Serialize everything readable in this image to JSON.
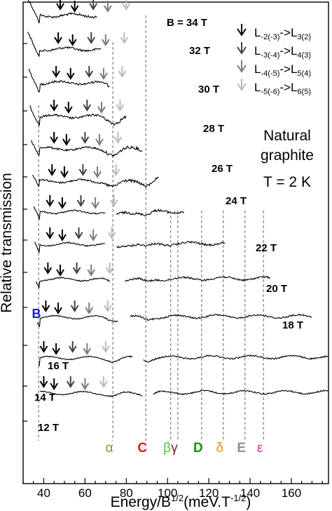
{
  "chart_data": {
    "type": "line",
    "xlabel": "Energy/B",
    "xlabel_sup": "1/2",
    "xlabel_units": "(meV.T",
    "xlabel_units_sup": "-1/2",
    "xlabel_close": ")",
    "ylabel": "Relative transmission",
    "xlim": [
      30,
      178
    ],
    "xticks": [
      40,
      60,
      80,
      100,
      120,
      140,
      160
    ],
    "field_order": [
      34,
      32,
      30,
      28,
      26,
      24,
      22,
      20,
      18,
      16,
      14,
      12
    ],
    "traces": [
      {
        "label": "B = 34 T",
        "field": 34
      },
      {
        "label": "32 T",
        "field": 32
      },
      {
        "label": "30 T",
        "field": 30
      },
      {
        "label": "28 T",
        "field": 28
      },
      {
        "label": "26 T",
        "field": 26
      },
      {
        "label": "24 T",
        "field": 24
      },
      {
        "label": "22 T",
        "field": 22
      },
      {
        "label": "20 T",
        "field": 20
      },
      {
        "label": "18 T",
        "field": 18
      },
      {
        "label": "16 T",
        "field": 16
      },
      {
        "label": "14 T",
        "field": 14
      },
      {
        "label": "12 T",
        "field": 12
      }
    ],
    "dashed_lines": [
      {
        "label": "B",
        "x": 37.5,
        "color": "#1a1adc"
      },
      {
        "label": "α",
        "x": 73.5,
        "color": "#9a8a1a"
      },
      {
        "label": "C",
        "x": 89.5,
        "color": "#e31a1c"
      },
      {
        "label": "β",
        "x": 101.5,
        "color": "#3ecc3e"
      },
      {
        "label": "γ",
        "x": 105,
        "color": "#8b1a1a"
      },
      {
        "label": "D",
        "x": 116.5,
        "color": "#1a8a1a"
      },
      {
        "label": "δ",
        "x": 127,
        "color": "#f08c1a"
      },
      {
        "label": "E",
        "x": 137.5,
        "color": "#909090"
      },
      {
        "label": "ε",
        "x": 146.5,
        "color": "#e0289a"
      }
    ],
    "transitions": [
      {
        "label": "L-2(-3) -> L3(2)",
        "main": "L",
        "sub1": "-2(-3)",
        "arrow": "->",
        "main2": "L",
        "sub2": "3(2)",
        "color": "#000000"
      },
      {
        "label": "L-3(-4) -> L4(3)",
        "main": "L",
        "sub1": "-3(-4)",
        "arrow": "->",
        "main2": "L",
        "sub2": "4(3)",
        "color": "#404040"
      },
      {
        "label": "L-4(-5) -> L5(4)",
        "main": "L",
        "sub1": "-4(-5)",
        "arrow": "->",
        "main2": "L",
        "sub2": "5(4)",
        "color": "#7a7a7a"
      },
      {
        "label": "L-5(-6) -> L6(5)",
        "main": "L",
        "sub1": "-5(-6)",
        "arrow": "->",
        "main2": "L",
        "sub2": "6(5)",
        "color": "#bbbbbb"
      }
    ],
    "annotations": {
      "sample_line1": "Natural",
      "sample_line2": "graphite",
      "temperature": "T = 2 K"
    }
  }
}
